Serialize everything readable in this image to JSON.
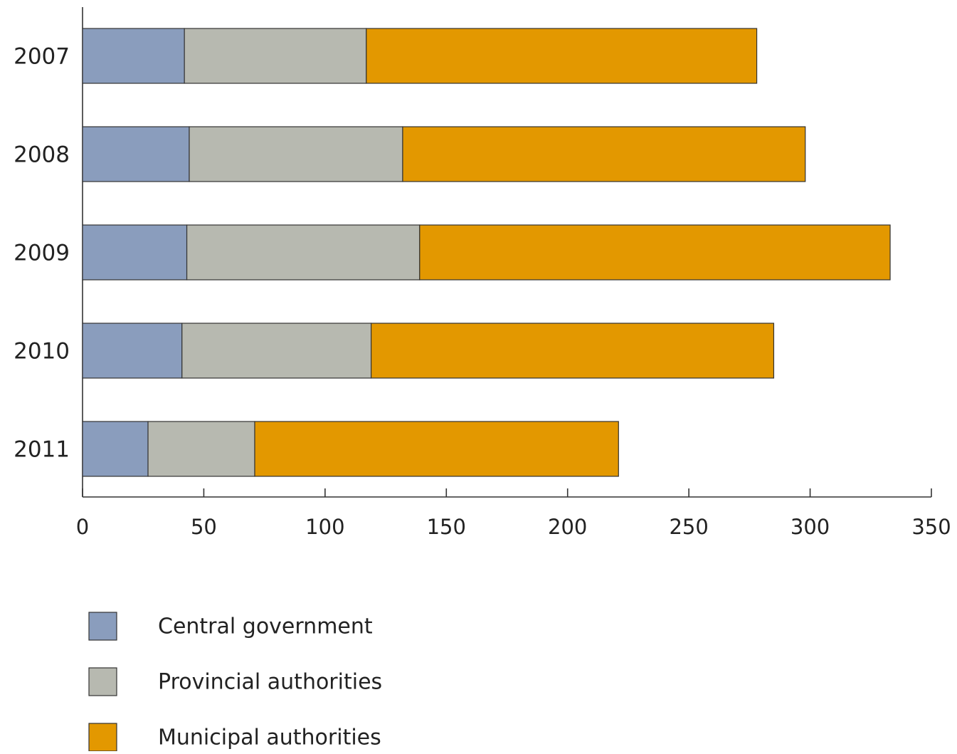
{
  "chart_data": {
    "type": "bar",
    "orientation": "horizontal",
    "stacked": true,
    "categories": [
      "2007",
      "2008",
      "2009",
      "2010",
      "2011"
    ],
    "series": [
      {
        "name": "Central government",
        "color": "#8a9dbd",
        "values": [
          42,
          44,
          43,
          41,
          27
        ]
      },
      {
        "name": "Provincial authorities",
        "color": "#b7b9b0",
        "values": [
          75,
          88,
          96,
          78,
          44
        ]
      },
      {
        "name": "Municipal authorities",
        "color": "#e39800",
        "values": [
          161,
          166,
          194,
          166,
          150
        ]
      }
    ],
    "x_ticks": [
      "0",
      "50",
      "100",
      "150",
      "200",
      "250",
      "300",
      "350"
    ],
    "xlim": [
      0,
      350
    ],
    "grid": false,
    "legend_position": "bottom-left",
    "title": "",
    "xlabel": "",
    "ylabel": ""
  }
}
